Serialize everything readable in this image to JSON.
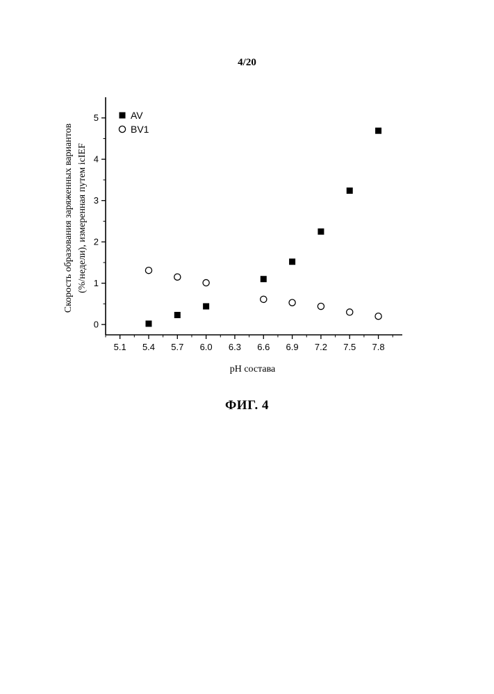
{
  "page": {
    "number": "4/20",
    "figure_caption": "ФИГ. 4"
  },
  "chart_data": {
    "type": "scatter",
    "title": "",
    "xlabel": "pH состава",
    "ylabel_lines": [
      "Скорость образования заряженных вариантов",
      "(%/недели), измеренная путем icIEF"
    ],
    "xlim": [
      4.95,
      8.05
    ],
    "ylim": [
      -0.25,
      5.5
    ],
    "x_ticks": [
      5.1,
      5.4,
      5.7,
      6.0,
      6.3,
      6.6,
      6.9,
      7.2,
      7.5,
      7.8
    ],
    "x_tick_labels": [
      "5.1",
      "5.4",
      "5.7",
      "6.0",
      "6.3",
      "6.6",
      "6.9",
      "7.2",
      "7.5",
      "7.8"
    ],
    "y_ticks": [
      0,
      1,
      2,
      3,
      4,
      5
    ],
    "y_tick_labels": [
      "0",
      "1",
      "2",
      "3",
      "4",
      "5"
    ],
    "grid": false,
    "legend_position": "top-left",
    "series": [
      {
        "name": "AV",
        "marker": "filled-square",
        "color": "#000000",
        "x": [
          5.4,
          5.7,
          6.0,
          6.6,
          6.9,
          7.2,
          7.5,
          7.8
        ],
        "y": [
          0.02,
          0.23,
          0.44,
          1.1,
          1.52,
          2.25,
          3.24,
          4.69
        ]
      },
      {
        "name": "BV1",
        "marker": "open-circle",
        "color": "#000000",
        "x": [
          5.4,
          5.7,
          6.0,
          6.6,
          6.9,
          7.2,
          7.5,
          7.8
        ],
        "y": [
          1.31,
          1.15,
          1.01,
          0.61,
          0.53,
          0.44,
          0.3,
          0.2
        ]
      }
    ]
  }
}
